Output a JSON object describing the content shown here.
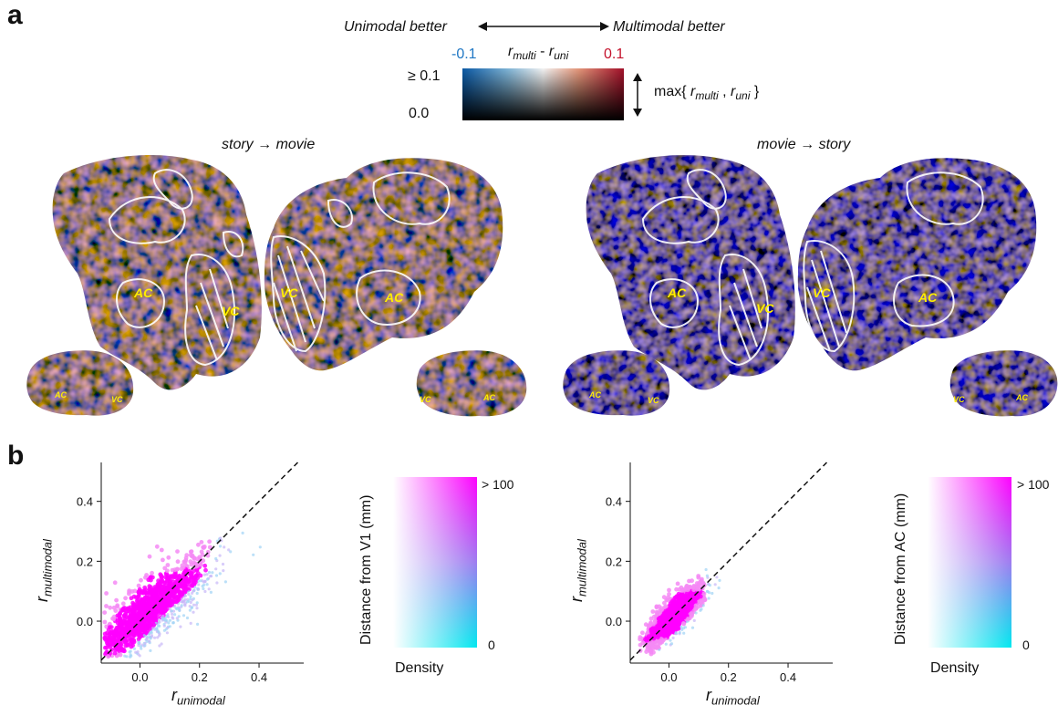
{
  "panel_a": {
    "letter": "a",
    "unimodal_better": "Unimodal better",
    "multimodal_better": "Multimodal better",
    "cbar_min": "-0.1",
    "cbar_max": "0.1",
    "cbar_title_r_multi": "r",
    "cbar_title_multi_sub": "multi",
    "cbar_title_minus": " - ",
    "cbar_title_r_uni": "r",
    "cbar_title_uni_sub": "uni",
    "cbar_top_label": "≥ 0.1",
    "cbar_bottom_label": "0.0",
    "max_label_prefix": "max{ ",
    "max_label_r1": "r",
    "max_label_sub1": "multi",
    "max_label_sep": " , ",
    "max_label_r2": "r",
    "max_label_sub2": "uni",
    "max_label_suffix": " }",
    "left_title": "story → movie",
    "right_title": "movie → story",
    "region_ac": "AC",
    "region_vc": "VC",
    "colors": {
      "negative": "#1f77c4",
      "positive": "#c4122c"
    }
  },
  "panel_b": {
    "letter": "b",
    "left": {
      "ylabel_r": "r",
      "ylabel_sub": "multimodal",
      "xlabel_r": "r",
      "xlabel_sub": "unimodal",
      "cbar_ylabel": "Distance from V1 (mm)",
      "cbar_xlabel": "Density",
      "cbar_top": "> 100",
      "cbar_bottom": "0"
    },
    "right": {
      "ylabel_r": "r",
      "ylabel_sub": "multimodal",
      "xlabel_r": "r",
      "xlabel_sub": "unimodal",
      "cbar_ylabel": "Distance from AC (mm)",
      "cbar_xlabel": "Density",
      "cbar_top": "> 100",
      "cbar_bottom": "0"
    }
  },
  "chart_data": [
    {
      "type": "scatter",
      "title": "",
      "xlabel": "r unimodal",
      "ylabel": "r multimodal",
      "x_ticks": [
        "0.0",
        "0.2",
        "0.4"
      ],
      "y_ticks": [
        "0.0",
        "0.2",
        "0.4"
      ],
      "xlim": [
        -0.13,
        0.55
      ],
      "ylim": [
        -0.14,
        0.53
      ],
      "reference_line": "y = x",
      "cloud": {
        "center": [
          0.03,
          0.03
        ],
        "extent_x": [
          -0.12,
          0.5
        ],
        "extent_y": [
          -0.12,
          0.43
        ]
      },
      "colors": {
        "near": "#ff00ff",
        "far": "#00e5ee"
      }
    },
    {
      "type": "scatter",
      "title": "",
      "xlabel": "r unimodal",
      "ylabel": "r multimodal",
      "x_ticks": [
        "0.0",
        "0.2",
        "0.4"
      ],
      "y_ticks": [
        "0.0",
        "0.2",
        "0.4"
      ],
      "xlim": [
        -0.13,
        0.55
      ],
      "ylim": [
        -0.14,
        0.53
      ],
      "reference_line": "y = x",
      "cloud": {
        "center": [
          0.02,
          0.02
        ],
        "extent_x": [
          -0.1,
          0.2
        ],
        "extent_y": [
          -0.11,
          0.2
        ]
      },
      "colors": {
        "near": "#ff00ff",
        "far": "#00e5ee"
      }
    }
  ]
}
